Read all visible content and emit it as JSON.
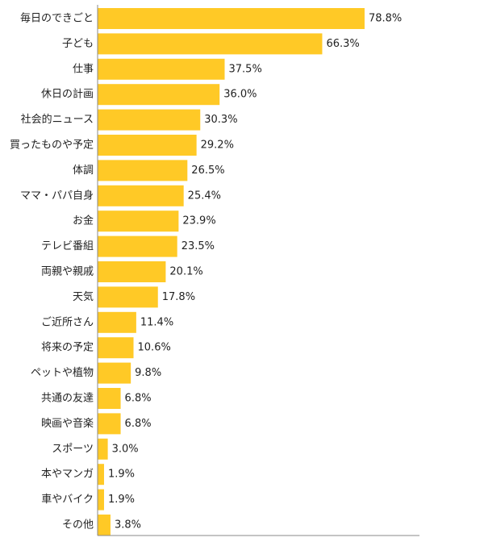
{
  "chart_data": {
    "type": "bar",
    "orientation": "horizontal",
    "categories": [
      "毎日のできごと",
      "子ども",
      "仕事",
      "休日の計画",
      "社会的ニュース",
      "買ったものや予定",
      "体調",
      "ママ・パパ自身",
      "お金",
      "テレビ番組",
      "両親や親戚",
      "天気",
      "ご近所さん",
      "将来の予定",
      "ペットや植物",
      "共通の友達",
      "映画や音楽",
      "スポーツ",
      "本やマンガ",
      "車やバイク",
      "その他"
    ],
    "values": [
      78.8,
      66.3,
      37.5,
      36.0,
      30.3,
      29.2,
      26.5,
      25.4,
      23.9,
      23.5,
      20.1,
      17.8,
      11.4,
      10.6,
      9.8,
      6.8,
      6.8,
      3.0,
      1.9,
      1.9,
      3.8
    ],
    "value_labels": [
      "78.8%",
      "66.3%",
      "37.5%",
      "36.0%",
      "30.3%",
      "29.2%",
      "26.5%",
      "25.4%",
      "23.9%",
      "23.5%",
      "20.1%",
      "17.8%",
      "11.4%",
      "10.6%",
      "9.8%",
      "6.8%",
      "6.8%",
      "3.0%",
      "1.9%",
      "1.9%",
      "3.8%"
    ],
    "bar_color": "#FFC926",
    "axis_color": "#888888",
    "xlim": [
      0,
      100
    ],
    "grid": false,
    "legend": "none"
  }
}
